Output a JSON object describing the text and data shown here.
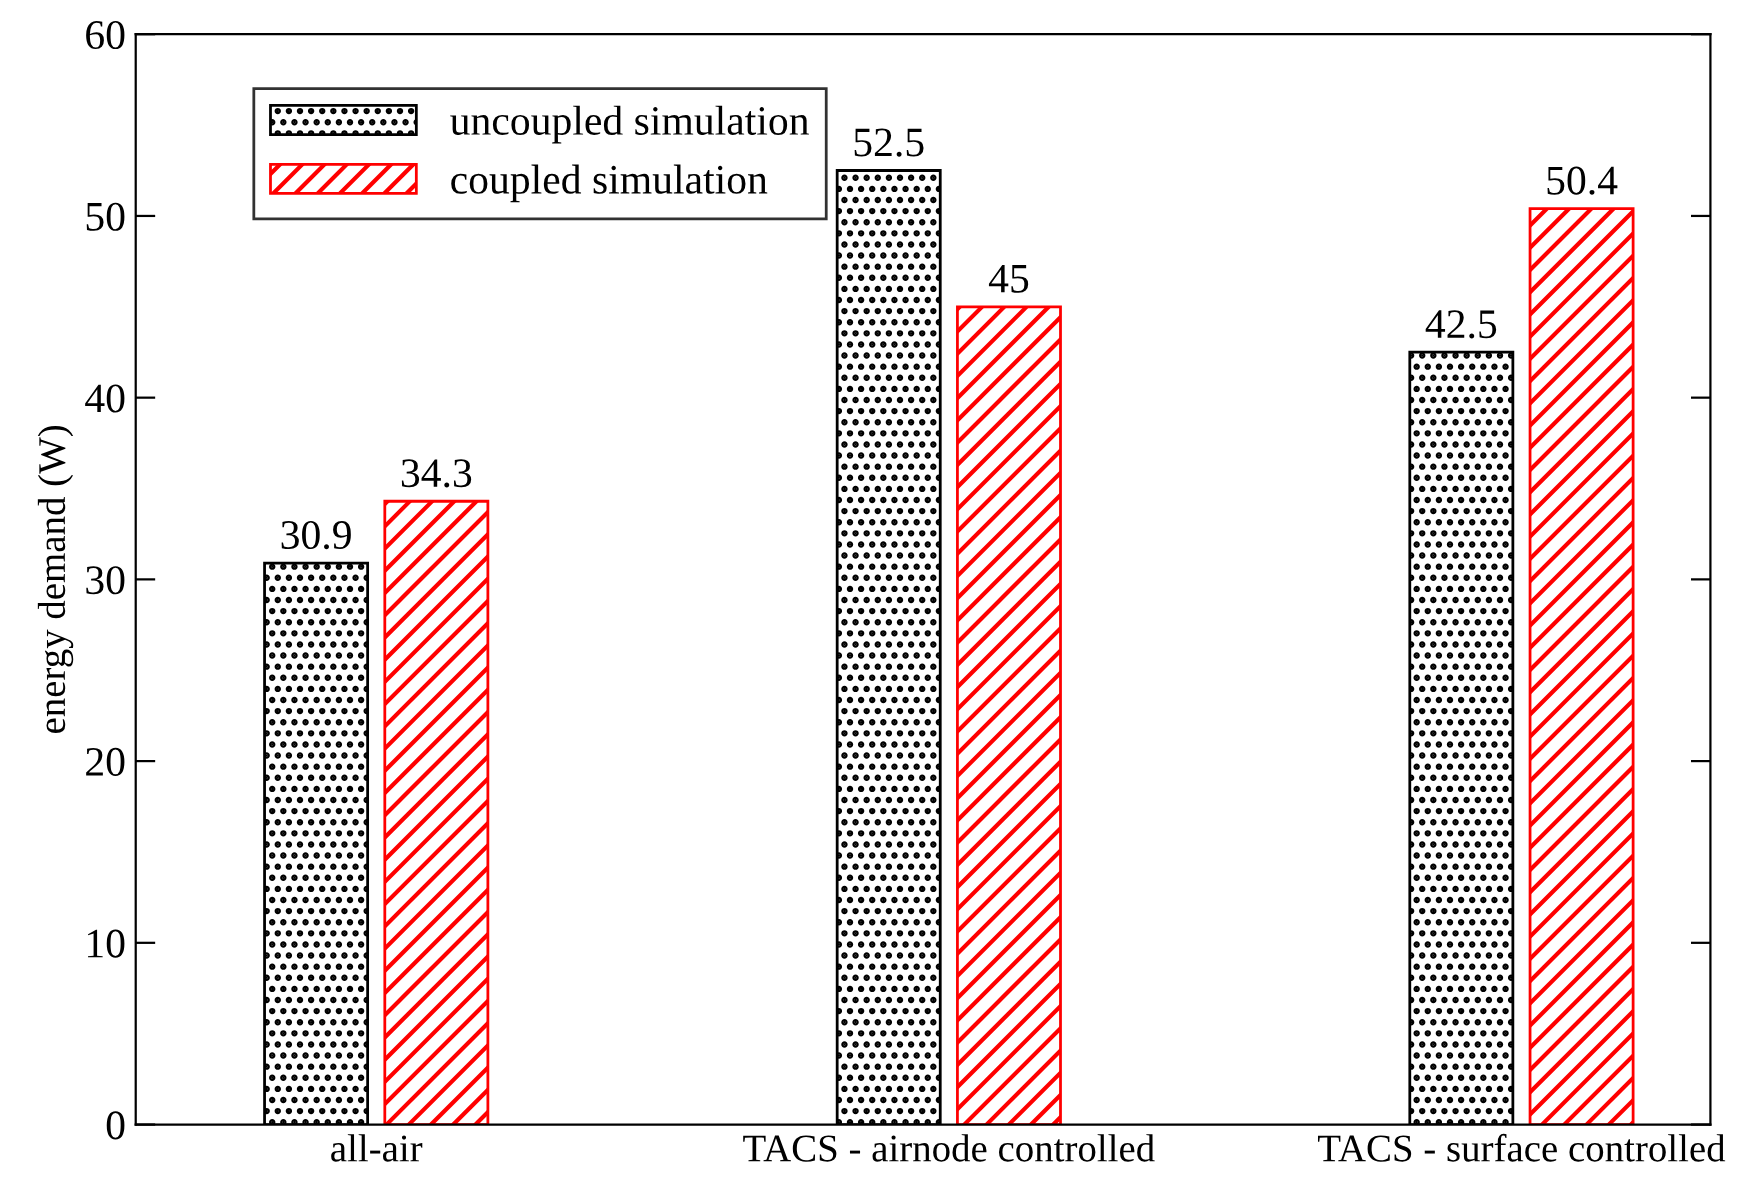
{
  "chart_data": {
    "type": "bar",
    "ylabel": "energy demand (W)",
    "categories": [
      "all-air",
      "TACS - airnode controlled",
      "TACS - surface controlled"
    ],
    "series": [
      {
        "name": "uncoupled simulation",
        "color": "#000000",
        "values": [
          30.9,
          52.5,
          42.5
        ]
      },
      {
        "name": "coupled simulation",
        "color": "#ff0000",
        "values": [
          34.3,
          45,
          50.4
        ]
      }
    ],
    "ylim": [
      0,
      60
    ],
    "yticks": [
      0,
      10,
      20,
      30,
      40,
      50,
      60
    ],
    "data_labels": true,
    "legend": "top left",
    "grid": false
  }
}
